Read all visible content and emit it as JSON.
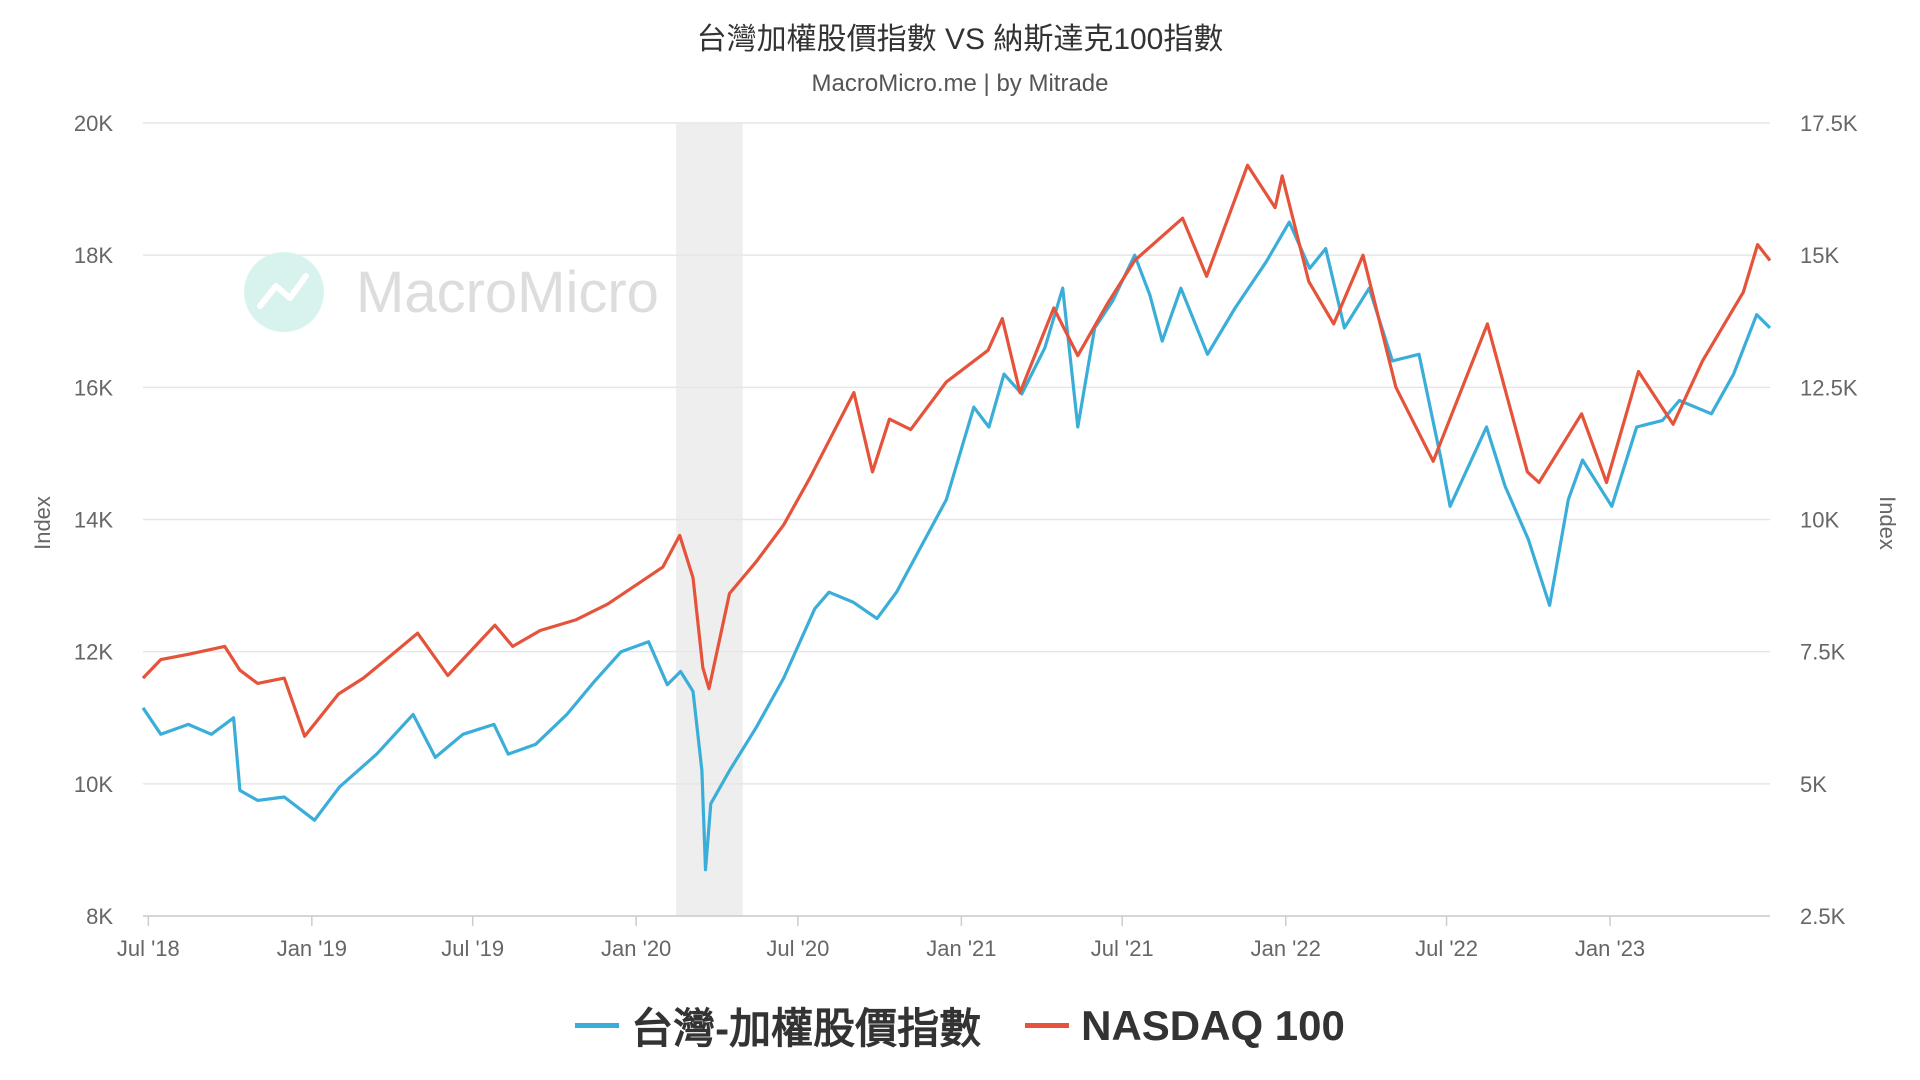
{
  "title": "台灣加權股價指數 VS 納斯達克100指數",
  "subtitle": "MacroMicro.me | by Mitrade",
  "watermark": "MacroMicro",
  "colors": {
    "taiwan": "#3aaed8",
    "nasdaq": "#e5533b",
    "recession_band": "#eeeeee",
    "grid": "#e6e6e6",
    "watermark_circle": "#d8f3ee"
  },
  "legend": {
    "taiwan": "台灣-加權股價指數",
    "nasdaq": "NASDAQ 100"
  },
  "chart_data": {
    "type": "line",
    "title": "台灣加權股價指數 VS 納斯達克100指數",
    "subtitle": "MacroMicro.me | by Mitrade",
    "xlabel": "",
    "ylabel_left": "Index",
    "ylabel_right": "Index",
    "x_tick_labels": [
      "Jul '18",
      "Jan '19",
      "Jul '19",
      "Jan '20",
      "Jul '20",
      "Jan '21",
      "Jul '21",
      "Jan '22",
      "Jul '22",
      "Jan '23"
    ],
    "x_range": [
      "2018-06-25",
      "2023-06-30"
    ],
    "y_left_ticks": [
      "8K",
      "10K",
      "12K",
      "14K",
      "16K",
      "18K",
      "20K"
    ],
    "y_left_range": [
      8000,
      20000
    ],
    "y_right_ticks": [
      "2.5K",
      "5K",
      "7.5K",
      "10K",
      "12.5K",
      "15K",
      "17.5K"
    ],
    "y_right_range": [
      2500,
      17500
    ],
    "grid": true,
    "legend_position": "bottom",
    "shaded_ranges": [
      [
        "2020-02-15",
        "2020-04-30"
      ]
    ],
    "series": [
      {
        "name": "台灣-加權股價指數",
        "axis": "left",
        "points": [
          [
            "2018-06-25",
            11150
          ],
          [
            "2018-07-15",
            10750
          ],
          [
            "2018-08-15",
            10900
          ],
          [
            "2018-09-10",
            10750
          ],
          [
            "2018-10-05",
            11000
          ],
          [
            "2018-10-12",
            9900
          ],
          [
            "2018-11-01",
            9750
          ],
          [
            "2018-12-01",
            9800
          ],
          [
            "2019-01-04",
            9450
          ],
          [
            "2019-02-01",
            9950
          ],
          [
            "2019-03-15",
            10450
          ],
          [
            "2019-04-25",
            11050
          ],
          [
            "2019-05-20",
            10400
          ],
          [
            "2019-06-20",
            10750
          ],
          [
            "2019-07-25",
            10900
          ],
          [
            "2019-08-10",
            10450
          ],
          [
            "2019-09-10",
            10600
          ],
          [
            "2019-10-15",
            11050
          ],
          [
            "2019-11-15",
            11550
          ],
          [
            "2019-12-15",
            12000
          ],
          [
            "2020-01-15",
            12150
          ],
          [
            "2020-02-05",
            11500
          ],
          [
            "2020-02-20",
            11700
          ],
          [
            "2020-03-05",
            11400
          ],
          [
            "2020-03-15",
            10200
          ],
          [
            "2020-03-19",
            8700
          ],
          [
            "2020-03-25",
            9700
          ],
          [
            "2020-04-15",
            10200
          ],
          [
            "2020-05-15",
            10850
          ],
          [
            "2020-06-15",
            11600
          ],
          [
            "2020-07-20",
            12650
          ],
          [
            "2020-08-05",
            12900
          ],
          [
            "2020-09-01",
            12750
          ],
          [
            "2020-09-28",
            12500
          ],
          [
            "2020-10-20",
            12900
          ],
          [
            "2020-11-15",
            13550
          ],
          [
            "2020-12-15",
            14300
          ],
          [
            "2021-01-15",
            15700
          ],
          [
            "2021-02-01",
            15400
          ],
          [
            "2021-02-18",
            16200
          ],
          [
            "2021-03-10",
            15900
          ],
          [
            "2021-04-05",
            16600
          ],
          [
            "2021-04-25",
            17500
          ],
          [
            "2021-05-12",
            15400
          ],
          [
            "2021-05-31",
            16900
          ],
          [
            "2021-06-20",
            17300
          ],
          [
            "2021-07-15",
            18000
          ],
          [
            "2021-08-01",
            17400
          ],
          [
            "2021-08-15",
            16700
          ],
          [
            "2021-09-05",
            17500
          ],
          [
            "2021-10-05",
            16500
          ],
          [
            "2021-11-05",
            17200
          ],
          [
            "2021-12-10",
            17900
          ],
          [
            "2022-01-05",
            18500
          ],
          [
            "2022-01-28",
            17800
          ],
          [
            "2022-02-15",
            18100
          ],
          [
            "2022-03-08",
            16900
          ],
          [
            "2022-04-05",
            17500
          ],
          [
            "2022-05-01",
            16400
          ],
          [
            "2022-05-31",
            16500
          ],
          [
            "2022-06-25",
            14900
          ],
          [
            "2022-07-05",
            14200
          ],
          [
            "2022-08-15",
            15400
          ],
          [
            "2022-09-05",
            14500
          ],
          [
            "2022-10-01",
            13700
          ],
          [
            "2022-10-25",
            12700
          ],
          [
            "2022-11-15",
            14300
          ],
          [
            "2022-12-01",
            14900
          ],
          [
            "2023-01-03",
            14200
          ],
          [
            "2023-01-31",
            15400
          ],
          [
            "2023-03-01",
            15500
          ],
          [
            "2023-03-20",
            15800
          ],
          [
            "2023-04-25",
            15600
          ],
          [
            "2023-05-20",
            16200
          ],
          [
            "2023-06-15",
            17100
          ],
          [
            "2023-06-30",
            16900
          ]
        ]
      },
      {
        "name": "NASDAQ 100",
        "axis": "right",
        "points": [
          [
            "2018-06-25",
            7000
          ],
          [
            "2018-07-15",
            7350
          ],
          [
            "2018-08-15",
            7450
          ],
          [
            "2018-09-25",
            7600
          ],
          [
            "2018-10-12",
            7150
          ],
          [
            "2018-11-01",
            6900
          ],
          [
            "2018-12-01",
            7000
          ],
          [
            "2018-12-24",
            5900
          ],
          [
            "2019-01-31",
            6700
          ],
          [
            "2019-02-28",
            7000
          ],
          [
            "2019-03-29",
            7400
          ],
          [
            "2019-04-30",
            7850
          ],
          [
            "2019-06-03",
            7050
          ],
          [
            "2019-07-26",
            8000
          ],
          [
            "2019-08-15",
            7600
          ],
          [
            "2019-09-15",
            7900
          ],
          [
            "2019-10-25",
            8100
          ],
          [
            "2019-11-30",
            8400
          ],
          [
            "2019-12-31",
            8750
          ],
          [
            "2020-01-31",
            9100
          ],
          [
            "2020-02-19",
            9700
          ],
          [
            "2020-03-05",
            8900
          ],
          [
            "2020-03-16",
            7200
          ],
          [
            "2020-03-23",
            6800
          ],
          [
            "2020-04-15",
            8600
          ],
          [
            "2020-05-15",
            9200
          ],
          [
            "2020-06-15",
            9900
          ],
          [
            "2020-07-15",
            10800
          ],
          [
            "2020-09-02",
            12400
          ],
          [
            "2020-09-23",
            10900
          ],
          [
            "2020-10-12",
            11900
          ],
          [
            "2020-11-05",
            11700
          ],
          [
            "2020-12-15",
            12600
          ],
          [
            "2021-01-31",
            13200
          ],
          [
            "2021-02-16",
            13800
          ],
          [
            "2021-03-08",
            12400
          ],
          [
            "2021-04-15",
            14000
          ],
          [
            "2021-05-12",
            13100
          ],
          [
            "2021-06-15",
            14100
          ],
          [
            "2021-07-15",
            14900
          ],
          [
            "2021-09-07",
            15700
          ],
          [
            "2021-10-04",
            14600
          ],
          [
            "2021-11-19",
            16700
          ],
          [
            "2021-12-20",
            15900
          ],
          [
            "2021-12-28",
            16500
          ],
          [
            "2022-01-27",
            14500
          ],
          [
            "2022-02-24",
            13700
          ],
          [
            "2022-03-29",
            15000
          ],
          [
            "2022-05-05",
            12500
          ],
          [
            "2022-06-16",
            11100
          ],
          [
            "2022-08-16",
            13700
          ],
          [
            "2022-09-30",
            10900
          ],
          [
            "2022-10-13",
            10700
          ],
          [
            "2022-11-30",
            12000
          ],
          [
            "2022-12-28",
            10700
          ],
          [
            "2023-02-02",
            12800
          ],
          [
            "2023-03-13",
            11800
          ],
          [
            "2023-04-15",
            13000
          ],
          [
            "2023-05-31",
            14300
          ],
          [
            "2023-06-16",
            15200
          ],
          [
            "2023-06-30",
            14900
          ]
        ]
      }
    ]
  }
}
